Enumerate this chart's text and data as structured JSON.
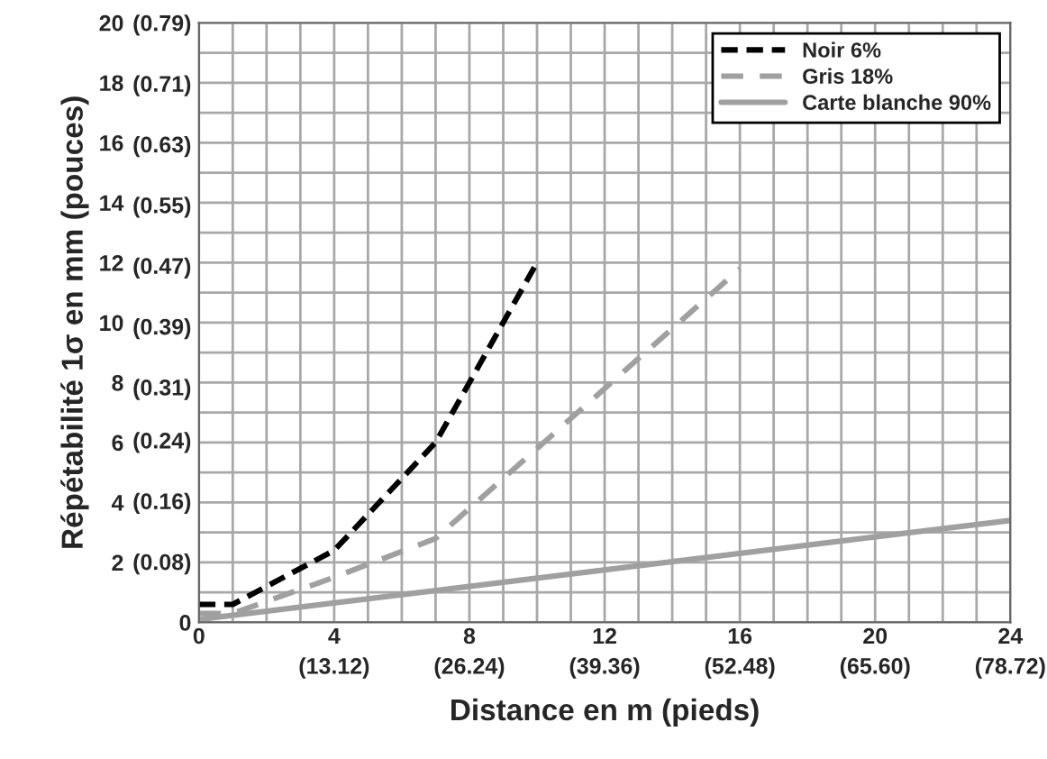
{
  "chart_data": {
    "type": "line",
    "xlabel": "Distance en m (pieds)",
    "ylabel": "Répétabilité 1σ en mm (pouces)",
    "xlim": [
      0,
      24
    ],
    "ylim": [
      0,
      20
    ],
    "xticks": [
      0,
      {
        "value": 1,
        "label": null
      },
      {
        "value": 2,
        "label": null
      },
      {
        "value": 3,
        "label": null
      },
      4,
      {
        "value": 5,
        "label": null
      },
      {
        "value": 6,
        "label": null
      },
      {
        "value": 7,
        "label": null
      },
      8,
      {
        "value": 9,
        "label": null
      },
      {
        "value": 10,
        "label": null
      },
      {
        "value": 11,
        "label": null
      },
      12,
      {
        "value": 13,
        "label": null
      },
      {
        "value": 14,
        "label": null
      },
      {
        "value": 15,
        "label": null
      },
      16,
      {
        "value": 17,
        "label": null
      },
      {
        "value": 18,
        "label": null
      },
      {
        "value": 19,
        "label": null
      },
      20,
      {
        "value": 21,
        "label": null
      },
      {
        "value": 22,
        "label": null
      },
      {
        "value": 23,
        "label": null
      },
      24
    ],
    "yticks": [
      {
        "value": 0,
        "label": null
      },
      {
        "value": 1,
        "label": null
      },
      2,
      {
        "value": 3,
        "label": null
      },
      4,
      {
        "value": 5,
        "label": null
      },
      6,
      {
        "value": 7,
        "label": null
      },
      8,
      {
        "value": 9,
        "label": null
      },
      10,
      {
        "value": 11,
        "label": null
      },
      12,
      {
        "value": 13,
        "label": null
      },
      14,
      {
        "value": 15,
        "label": null
      },
      16,
      {
        "value": 17,
        "label": null
      },
      18,
      {
        "value": 19,
        "label": null
      },
      20
    ],
    "x2lim": [
      0,
      78.72
    ],
    "x2ticks": [
      {
        "value": 13.12,
        "label": "(13.12)"
      },
      {
        "value": 26.24,
        "label": "(26.24)"
      },
      {
        "value": 39.36,
        "label": "(39.36)"
      },
      {
        "value": 52.48,
        "label": "(52.48)"
      },
      {
        "value": 65.6,
        "label": "(65.60)"
      },
      {
        "value": 78.72,
        "label": "(78.72)"
      }
    ],
    "y2lim": [
      0,
      0.79
    ],
    "y2ticks": [
      0,
      {
        "value": 0.08,
        "label": "(0.08)"
      },
      {
        "value": 0.16,
        "label": "(0.16)"
      },
      {
        "value": 0.24,
        "label": "(0.24)"
      },
      {
        "value": 0.31,
        "label": "(0.31)"
      },
      {
        "value": 0.39,
        "label": "(0.39)"
      },
      {
        "value": 0.47,
        "label": "(0.47)"
      },
      {
        "value": 0.55,
        "label": "(0.55)"
      },
      {
        "value": 0.63,
        "label": "(0.63)"
      },
      {
        "value": 0.71,
        "label": "(0.71)"
      },
      {
        "value": 0.79,
        "label": "(0.79)"
      }
    ],
    "grid": true,
    "legend": "top right",
    "marker": "none",
    "series": [
      {
        "name": "Noir 6%",
        "color": "#000000",
        "line_style": "dashed",
        "x": [
          0,
          1,
          4,
          7,
          10
        ],
        "values": [
          0.6,
          0.6,
          2.4,
          6,
          12
        ]
      },
      {
        "name": "Gris 18%",
        "color": "#a0a0a0",
        "line_style": "dashed",
        "x": [
          0,
          1,
          4,
          7,
          16
        ],
        "values": [
          0.3,
          0.3,
          1.5,
          2.8,
          11.8
        ]
      },
      {
        "name": "Carte blanche 90%",
        "color": "#a0a0a0",
        "line_style": "solid",
        "x": [
          0,
          24
        ],
        "values": [
          0.1,
          3.4
        ]
      }
    ]
  }
}
